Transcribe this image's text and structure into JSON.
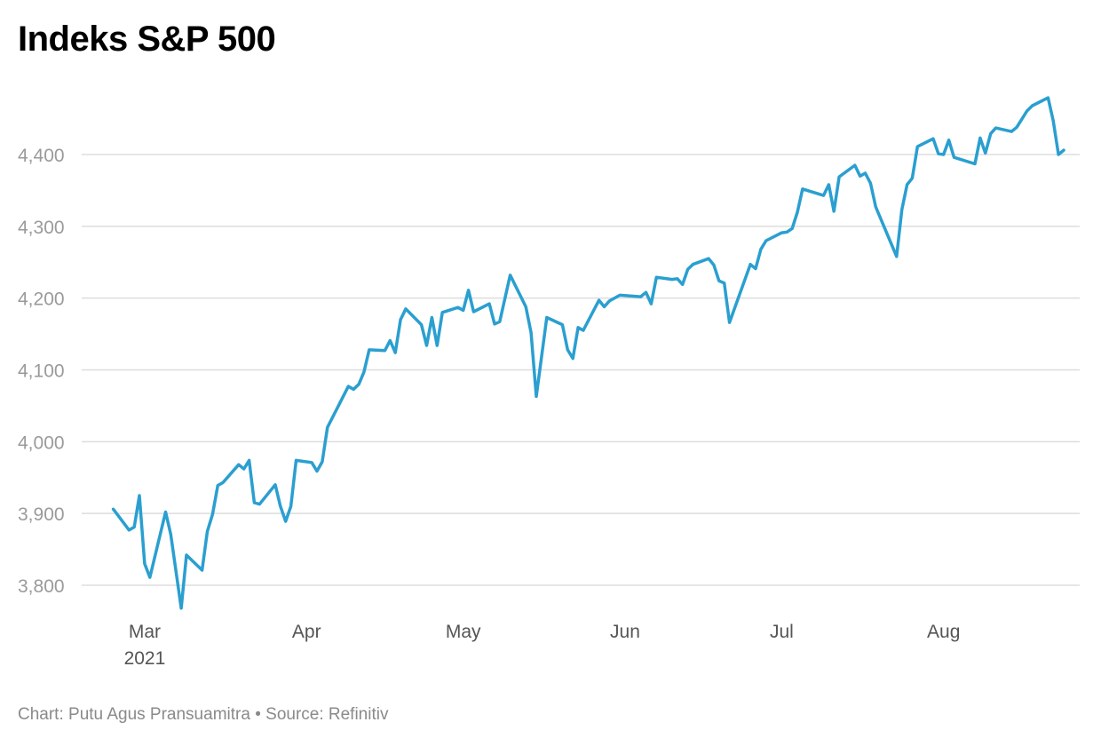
{
  "title": "Indeks S&P 500",
  "footer": {
    "chart_credit": "Chart: Putu Agus Pransuamitra",
    "separator": " • ",
    "source": "Source: Refinitiv"
  },
  "colors": {
    "line": "#2a9fd0",
    "grid": "#dddddd",
    "axis_text": "#9a9a9a"
  },
  "chart_data": {
    "type": "line",
    "title": "Indeks S&P 500",
    "xlabel": "",
    "ylabel": "",
    "grid": true,
    "legend": "none",
    "ylim": [
      3750,
      4500
    ],
    "xlim": [
      "2021-02-20",
      "2021-08-24"
    ],
    "y_ticks": [
      3800,
      3900,
      4000,
      4100,
      4200,
      4300,
      4400
    ],
    "y_tick_labels": [
      "3,800",
      "3,900",
      "4,000",
      "4,100",
      "4,200",
      "4,300",
      "4,400"
    ],
    "x_ticks": [
      {
        "date": "2021-03-01",
        "label": "Mar",
        "sublabel": "2021"
      },
      {
        "date": "2021-04-01",
        "label": "Apr",
        "sublabel": ""
      },
      {
        "date": "2021-05-01",
        "label": "May",
        "sublabel": ""
      },
      {
        "date": "2021-06-01",
        "label": "Jun",
        "sublabel": ""
      },
      {
        "date": "2021-07-01",
        "label": "Jul",
        "sublabel": ""
      },
      {
        "date": "2021-08-01",
        "label": "Aug",
        "sublabel": ""
      }
    ],
    "series": [
      {
        "values": [
          [
            "2021-02-23",
            3906
          ],
          [
            "2021-02-26",
            3877
          ],
          [
            "2021-02-27",
            3881
          ],
          [
            "2021-02-28",
            3925
          ],
          [
            "2021-03-01",
            3830
          ],
          [
            "2021-03-02",
            3811
          ],
          [
            "2021-03-05",
            3902
          ],
          [
            "2021-03-06",
            3871
          ],
          [
            "2021-03-08",
            3768
          ],
          [
            "2021-03-09",
            3842
          ],
          [
            "2021-03-12",
            3821
          ],
          [
            "2021-03-13",
            3875
          ],
          [
            "2021-03-14",
            3899
          ],
          [
            "2021-03-15",
            3939
          ],
          [
            "2021-03-16",
            3943
          ],
          [
            "2021-03-19",
            3968
          ],
          [
            "2021-03-20",
            3962
          ],
          [
            "2021-03-21",
            3974
          ],
          [
            "2021-03-22",
            3915
          ],
          [
            "2021-03-23",
            3913
          ],
          [
            "2021-03-26",
            3940
          ],
          [
            "2021-03-27",
            3910
          ],
          [
            "2021-03-28",
            3889
          ],
          [
            "2021-03-29",
            3910
          ],
          [
            "2021-03-30",
            3974
          ],
          [
            "2021-04-02",
            3971
          ],
          [
            "2021-04-03",
            3959
          ],
          [
            "2021-04-04",
            3972
          ],
          [
            "2021-04-05",
            4020
          ],
          [
            "2021-04-09",
            4077
          ],
          [
            "2021-04-10",
            4073
          ],
          [
            "2021-04-11",
            4080
          ],
          [
            "2021-04-12",
            4097
          ],
          [
            "2021-04-13",
            4128
          ],
          [
            "2021-04-16",
            4127
          ],
          [
            "2021-04-17",
            4141
          ],
          [
            "2021-04-18",
            4124
          ],
          [
            "2021-04-19",
            4170
          ],
          [
            "2021-04-20",
            4185
          ],
          [
            "2021-04-23",
            4163
          ],
          [
            "2021-04-24",
            4134
          ],
          [
            "2021-04-25",
            4173
          ],
          [
            "2021-04-26",
            4134
          ],
          [
            "2021-04-27",
            4180
          ],
          [
            "2021-04-30",
            4187
          ],
          [
            "2021-05-01",
            4183
          ],
          [
            "2021-05-02",
            4211
          ],
          [
            "2021-05-03",
            4181
          ],
          [
            "2021-05-06",
            4192
          ],
          [
            "2021-05-07",
            4164
          ],
          [
            "2021-05-08",
            4167
          ],
          [
            "2021-05-10",
            4232
          ],
          [
            "2021-05-13",
            4188
          ],
          [
            "2021-05-14",
            4152
          ],
          [
            "2021-05-15",
            4063
          ],
          [
            "2021-05-17",
            4173
          ],
          [
            "2021-05-20",
            4163
          ],
          [
            "2021-05-21",
            4128
          ],
          [
            "2021-05-22",
            4116
          ],
          [
            "2021-05-23",
            4159
          ],
          [
            "2021-05-24",
            4155
          ],
          [
            "2021-05-27",
            4197
          ],
          [
            "2021-05-28",
            4188
          ],
          [
            "2021-05-29",
            4196
          ],
          [
            "2021-05-31",
            4204
          ],
          [
            "2021-06-04",
            4202
          ],
          [
            "2021-06-05",
            4208
          ],
          [
            "2021-06-06",
            4192
          ],
          [
            "2021-06-07",
            4229
          ],
          [
            "2021-06-10",
            4226
          ],
          [
            "2021-06-11",
            4227
          ],
          [
            "2021-06-12",
            4219
          ],
          [
            "2021-06-13",
            4240
          ],
          [
            "2021-06-14",
            4247
          ],
          [
            "2021-06-17",
            4255
          ],
          [
            "2021-06-18",
            4246
          ],
          [
            "2021-06-19",
            4224
          ],
          [
            "2021-06-20",
            4221
          ],
          [
            "2021-06-21",
            4166
          ],
          [
            "2021-06-25",
            4247
          ],
          [
            "2021-06-26",
            4241
          ],
          [
            "2021-06-27",
            4268
          ],
          [
            "2021-06-28",
            4280
          ],
          [
            "2021-07-01",
            4291
          ],
          [
            "2021-07-02",
            4292
          ],
          [
            "2021-07-03",
            4297
          ],
          [
            "2021-07-04",
            4320
          ],
          [
            "2021-07-05",
            4352
          ],
          [
            "2021-07-09",
            4343
          ],
          [
            "2021-07-10",
            4358
          ],
          [
            "2021-07-11",
            4321
          ],
          [
            "2021-07-12",
            4369
          ],
          [
            "2021-07-15",
            4385
          ],
          [
            "2021-07-16",
            4370
          ],
          [
            "2021-07-17",
            4374
          ],
          [
            "2021-07-18",
            4360
          ],
          [
            "2021-07-19",
            4327
          ],
          [
            "2021-07-23",
            4258
          ],
          [
            "2021-07-24",
            4323
          ],
          [
            "2021-07-25",
            4358
          ],
          [
            "2021-07-26",
            4367
          ],
          [
            "2021-07-27",
            4411
          ],
          [
            "2021-07-30",
            4422
          ],
          [
            "2021-07-31",
            4401
          ],
          [
            "2021-08-01",
            4400
          ],
          [
            "2021-08-02",
            4420
          ],
          [
            "2021-08-03",
            4396
          ],
          [
            "2021-08-07",
            4387
          ],
          [
            "2021-08-08",
            4423
          ],
          [
            "2021-08-09",
            4402
          ],
          [
            "2021-08-10",
            4429
          ],
          [
            "2021-08-11",
            4437
          ],
          [
            "2021-08-14",
            4432
          ],
          [
            "2021-08-15",
            4438
          ],
          [
            "2021-08-17",
            4461
          ],
          [
            "2021-08-18",
            4468
          ],
          [
            "2021-08-21",
            4479
          ],
          [
            "2021-08-22",
            4447
          ],
          [
            "2021-08-23",
            4400
          ],
          [
            "2021-08-24",
            4406
          ]
        ]
      }
    ]
  }
}
